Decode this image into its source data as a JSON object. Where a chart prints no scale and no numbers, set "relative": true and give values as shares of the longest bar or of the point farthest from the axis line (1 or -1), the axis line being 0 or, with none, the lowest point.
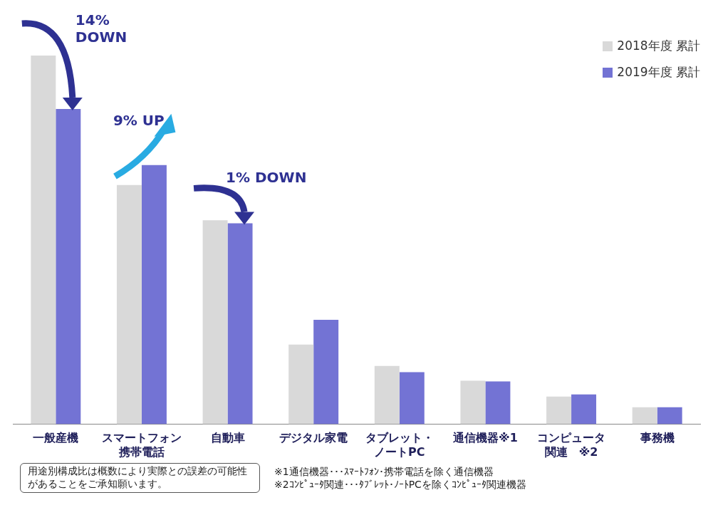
{
  "chart_data": {
    "type": "bar",
    "relative": true,
    "legend": "top right",
    "categories": [
      "一般産機",
      "スマートフォン携帯電話",
      "自動車",
      "デジタル家電",
      "タブレット・ノートPC",
      "通信機器※1",
      "コンピュータ関連　※2",
      "事務機"
    ],
    "series": [
      {
        "name": "2018年度 累計",
        "color": "#d9d9d9",
        "values": [
          1,
          0.649,
          0.553,
          0.216,
          0.158,
          0.118,
          0.075,
          0.046
        ]
      },
      {
        "name": "2019年度 累計",
        "color": "#7373d4",
        "values": [
          0.855,
          0.703,
          0.545,
          0.283,
          0.141,
          0.116,
          0.081,
          0.046
        ]
      }
    ],
    "annotations": [
      {
        "text": "14% DOWN",
        "x": "一般産機",
        "y": 1
      },
      {
        "text": "9% UP",
        "x": "スマートフォン携帯電話",
        "y": 0.703
      },
      {
        "text": "1% DOWN",
        "x": "自動車",
        "y": 0.553
      },
      "用途別構成比は概数により実際との誤差の可能性があることをご承知願います。",
      "※1通信機器･･･ｽﾏｰﾄﾌｫﾝ･携帯電話を除く通信機器",
      "※2ｺﾝﾋﾟｭｰﾀ関連･･･ﾀﾌﾞﾚｯﾄ･ﾉｰﾄPCを除くｺﾝﾋﾟｭｰﾀ関連機器"
    ]
  }
}
